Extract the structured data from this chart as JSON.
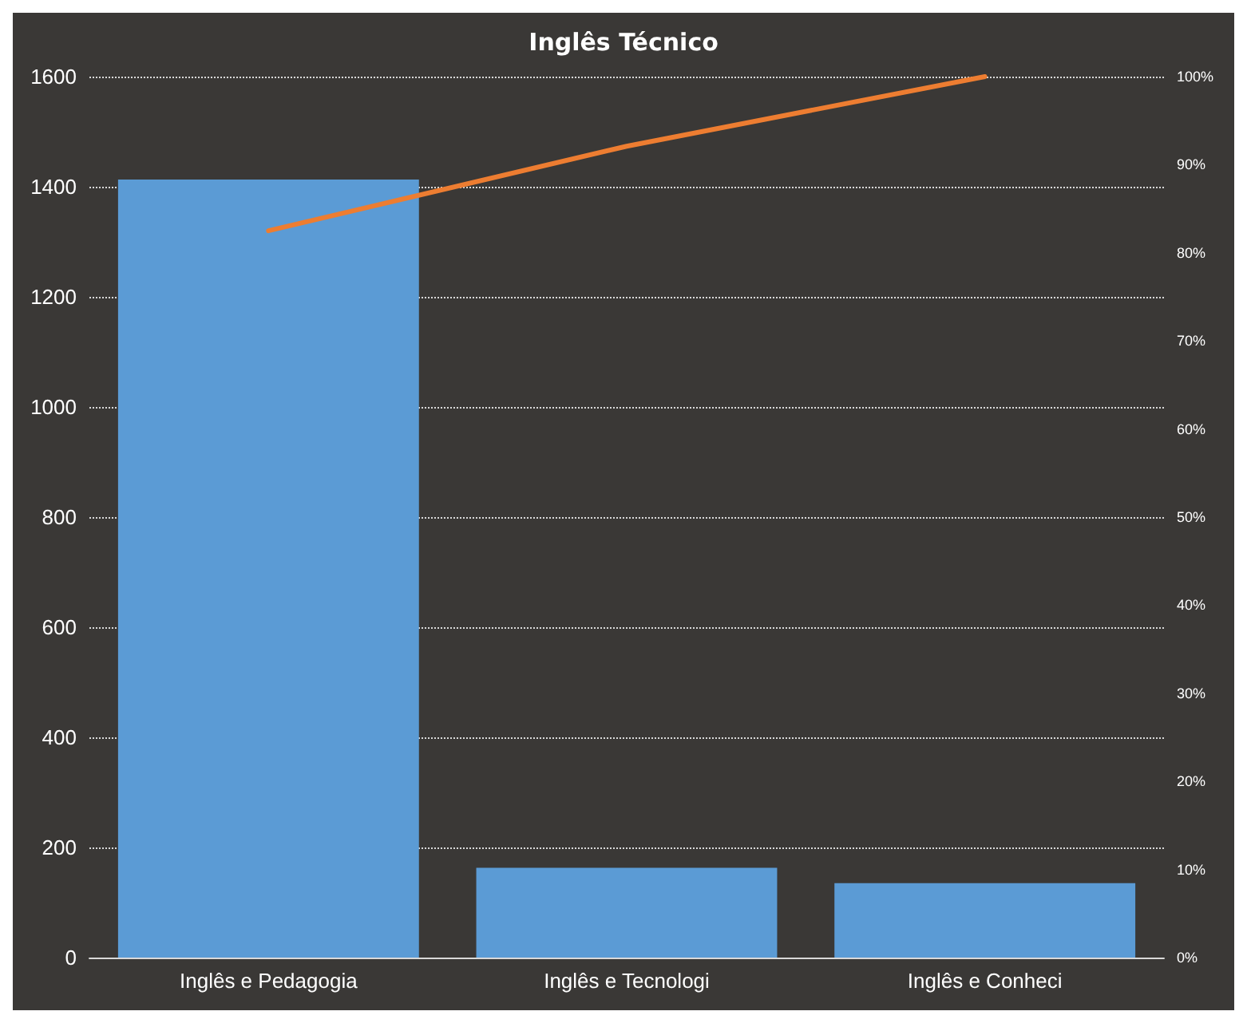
{
  "chart_data": {
    "type": "bar",
    "title": "Inglês Técnico",
    "categories": [
      "Inglês e Pedagogia",
      "Inglês e Tecnologi",
      "Inglês e Conheci"
    ],
    "series": [
      {
        "color": "#5b9bd5",
        "values": [
          1413,
          163,
          135
        ]
      },
      {
        "type": "line",
        "axis": "y2",
        "color": "#ed7d31",
        "values": [
          82.5,
          92.1,
          100
        ]
      }
    ],
    "ylim": [
      0,
      1600
    ],
    "yticks": [
      0,
      200,
      400,
      600,
      800,
      1000,
      1200,
      1400,
      1600
    ],
    "y2lim": [
      0,
      100
    ],
    "y2ticks": [
      {
        "value": 0,
        "label": "0%"
      },
      {
        "value": 10,
        "label": "10%"
      },
      {
        "value": 20,
        "label": "20%"
      },
      {
        "value": 30,
        "label": "30%"
      },
      {
        "value": 40,
        "label": "40%"
      },
      {
        "value": 50,
        "label": "50%"
      },
      {
        "value": 60,
        "label": "60%"
      },
      {
        "value": 70,
        "label": "70%"
      },
      {
        "value": 80,
        "label": "80%"
      },
      {
        "value": 90,
        "label": "90%"
      },
      {
        "value": 100,
        "label": "100%"
      }
    ],
    "grid": "y",
    "marker": "none"
  }
}
